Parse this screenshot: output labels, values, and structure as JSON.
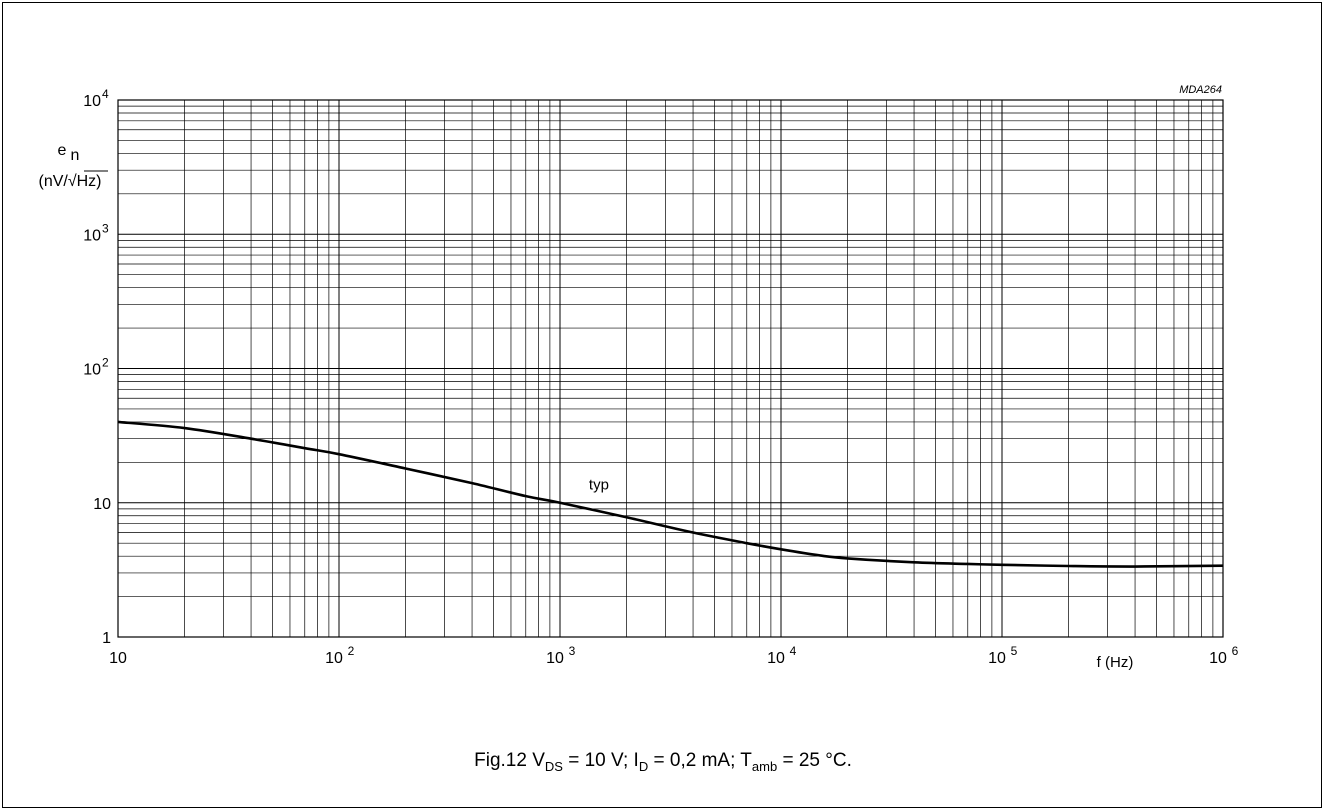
{
  "chart_data": {
    "type": "line",
    "x_scale": "log",
    "y_scale": "log",
    "xlim": [
      10,
      1000000
    ],
    "ylim": [
      1,
      10000
    ],
    "grid": true,
    "reference": "MDA264",
    "ylabel_main": "e",
    "ylabel_sub": "n",
    "ylabel_unit": "(nV/√Hz)",
    "xlabel": "f (Hz)",
    "x_ticks": [
      {
        "value": 10,
        "base": "10",
        "exp": ""
      },
      {
        "value": 100,
        "base": "10",
        "exp": "2"
      },
      {
        "value": 1000,
        "base": "10",
        "exp": "3"
      },
      {
        "value": 10000,
        "base": "10",
        "exp": "4"
      },
      {
        "value": 100000,
        "base": "10",
        "exp": "5"
      },
      {
        "value": 1000000,
        "base": "10",
        "exp": "6"
      }
    ],
    "y_ticks": [
      {
        "value": 1,
        "base": "1",
        "exp": ""
      },
      {
        "value": 10,
        "base": "10",
        "exp": ""
      },
      {
        "value": 100,
        "base": "10",
        "exp": "2"
      },
      {
        "value": 1000,
        "base": "10",
        "exp": "3"
      },
      {
        "value": 10000,
        "base": "10",
        "exp": "4"
      }
    ],
    "series": [
      {
        "name": "typ",
        "x": [
          10,
          20,
          40,
          70,
          100,
          200,
          400,
          700,
          1000,
          2000,
          4000,
          7000,
          10000,
          15000,
          20000,
          40000,
          70000,
          100000,
          200000,
          400000,
          1000000
        ],
        "y": [
          40,
          36,
          30,
          25.5,
          23,
          18,
          14,
          11.2,
          10,
          7.8,
          6,
          5,
          4.5,
          4.05,
          3.85,
          3.6,
          3.5,
          3.45,
          3.38,
          3.35,
          3.4
        ]
      }
    ],
    "series_label_position": {
      "x": 1500,
      "y": 12.5
    }
  },
  "caption": {
    "prefix": "Fig.12  V",
    "vds_sub": "DS",
    "vds_rest": " = 10 V; I",
    "id_sub": "D",
    "id_rest": " = 0,2 mA; T",
    "t_sub": "amb",
    "t_rest": " = 25 °C."
  }
}
